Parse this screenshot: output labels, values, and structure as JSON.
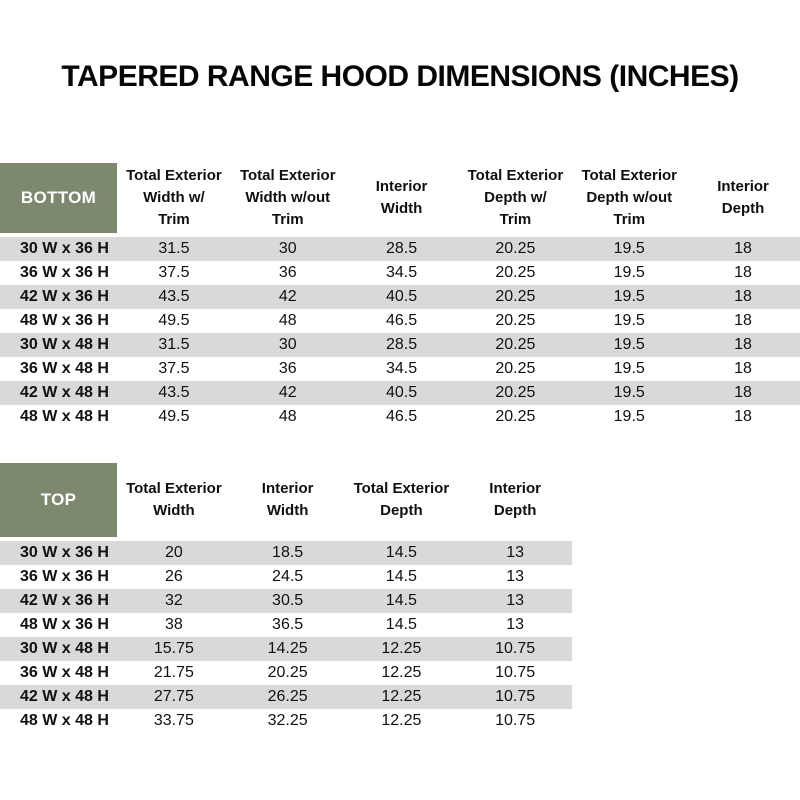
{
  "page": {
    "title": "TAPERED RANGE HOOD DIMENSIONS (INCHES)"
  },
  "colors": {
    "header_green": "#7d896e",
    "corner_text": "#ffffff",
    "stripe_gray": "#d9d9d9",
    "text": "#111111"
  },
  "bottom_table": {
    "corner_label": "BOTTOM",
    "columns": [
      "Total Exterior\nWidth w/\nTrim",
      "Total Exterior\nWidth w/out\nTrim",
      "Interior\nWidth",
      "Total Exterior\nDepth w/\nTrim",
      "Total Exterior\nDepth w/out\nTrim",
      "Interior\nDepth"
    ],
    "rows": [
      {
        "label": "30 W x 36 H",
        "values": [
          "31.5",
          "30",
          "28.5",
          "20.25",
          "19.5",
          "18"
        ]
      },
      {
        "label": "36 W x 36 H",
        "values": [
          "37.5",
          "36",
          "34.5",
          "20.25",
          "19.5",
          "18"
        ]
      },
      {
        "label": "42 W x 36 H",
        "values": [
          "43.5",
          "42",
          "40.5",
          "20.25",
          "19.5",
          "18"
        ]
      },
      {
        "label": "48 W x 36 H",
        "values": [
          "49.5",
          "48",
          "46.5",
          "20.25",
          "19.5",
          "18"
        ]
      },
      {
        "label": "30 W x 48 H",
        "values": [
          "31.5",
          "30",
          "28.5",
          "20.25",
          "19.5",
          "18"
        ]
      },
      {
        "label": "36 W x 48 H",
        "values": [
          "37.5",
          "36",
          "34.5",
          "20.25",
          "19.5",
          "18"
        ]
      },
      {
        "label": "42 W x 48 H",
        "values": [
          "43.5",
          "42",
          "40.5",
          "20.25",
          "19.5",
          "18"
        ]
      },
      {
        "label": "48 W x 48 H",
        "values": [
          "49.5",
          "48",
          "46.5",
          "20.25",
          "19.5",
          "18"
        ]
      }
    ]
  },
  "top_table": {
    "corner_label": "TOP",
    "columns": [
      "Total Exterior\nWidth",
      "Interior\nWidth",
      "Total Exterior\nDepth",
      "Interior\nDepth"
    ],
    "rows": [
      {
        "label": "30 W x 36 H",
        "values": [
          "20",
          "18.5",
          "14.5",
          "13"
        ]
      },
      {
        "label": "36 W x 36 H",
        "values": [
          "26",
          "24.5",
          "14.5",
          "13"
        ]
      },
      {
        "label": "42 W x 36 H",
        "values": [
          "32",
          "30.5",
          "14.5",
          "13"
        ]
      },
      {
        "label": "48 W x 36 H",
        "values": [
          "38",
          "36.5",
          "14.5",
          "13"
        ]
      },
      {
        "label": "30 W x 48 H",
        "values": [
          "15.75",
          "14.25",
          "12.25",
          "10.75"
        ]
      },
      {
        "label": "36 W x 48 H",
        "values": [
          "21.75",
          "20.25",
          "12.25",
          "10.75"
        ]
      },
      {
        "label": "42 W x 48 H",
        "values": [
          "27.75",
          "26.25",
          "12.25",
          "10.75"
        ]
      },
      {
        "label": "48 W x 48 H",
        "values": [
          "33.75",
          "32.25",
          "12.25",
          "10.75"
        ]
      }
    ]
  }
}
